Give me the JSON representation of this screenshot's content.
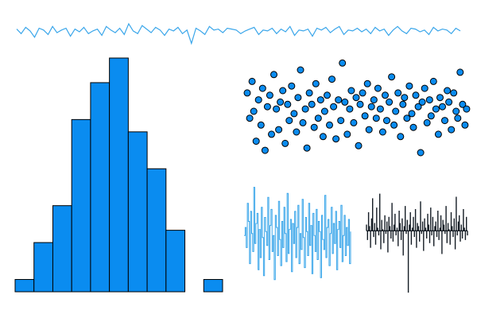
{
  "colors": {
    "blue": "#0a8cf0",
    "light_blue": "#3aa6ea",
    "dark": "#141c24",
    "outline": "#000000",
    "background": "#ffffff"
  },
  "chart_data": [
    {
      "type": "line",
      "description_free": true,
      "x": [
        0,
        1,
        2,
        3,
        4,
        5,
        6,
        7,
        8,
        9,
        10,
        11,
        12,
        13,
        14,
        15,
        16,
        17,
        18,
        19,
        20,
        21,
        22,
        23,
        24,
        25,
        26,
        27,
        28,
        29,
        30,
        31,
        32,
        33,
        34,
        35,
        36,
        37,
        38,
        39,
        40,
        41,
        42,
        43,
        44,
        45,
        46,
        47,
        48,
        49,
        50,
        51,
        52,
        53,
        54,
        55,
        56,
        57,
        58,
        59,
        60,
        61,
        62,
        63,
        64,
        65,
        66,
        67,
        68,
        69,
        70,
        71,
        72,
        73,
        74,
        75,
        76,
        77,
        78,
        79,
        80,
        81,
        82,
        83,
        84,
        85,
        86,
        87,
        88,
        89,
        90,
        91,
        92,
        93,
        94,
        95,
        96,
        97,
        98,
        99
      ],
      "y": [
        0.3,
        -0.2,
        0.5,
        0.1,
        -0.6,
        0.4,
        0.2,
        -0.3,
        0.6,
        -0.1,
        0.2,
        0.4,
        -0.5,
        0.3,
        0.0,
        0.5,
        -0.2,
        0.1,
        0.3,
        -0.4,
        0.6,
        0.2,
        -0.1,
        0.4,
        -0.3,
        0.9,
        0.1,
        -0.2,
        0.7,
        0.3,
        -0.1,
        0.5,
        0.2,
        -0.4,
        0.3,
        0.1,
        0.5,
        -0.2,
        0.2,
        -1.3,
        0.4,
        0.1,
        -0.3,
        0.6,
        0.2,
        0.3,
        -0.1,
        0.4,
        0.3,
        0.2,
        -0.2,
        0.1,
        0.3,
        0.5,
        -0.3,
        0.2,
        0.1,
        0.4,
        -0.2,
        0.3,
        0.0,
        0.6,
        -0.4,
        0.2,
        0.1,
        0.3,
        -0.5,
        0.4,
        0.2,
        0.5,
        -0.1,
        0.3,
        0.6,
        -0.3,
        0.2,
        0.1,
        0.4,
        0.0,
        0.3,
        -0.2,
        0.5,
        0.1,
        0.3,
        -0.4,
        0.2,
        0.6,
        0.1,
        -0.2,
        0.4,
        0.3,
        0.0,
        0.2,
        -0.3,
        0.5,
        0.1,
        0.3,
        0.2,
        -0.2,
        0.4,
        0.1
      ],
      "ylim": [
        -1.6,
        1.6
      ]
    },
    {
      "type": "bar",
      "bin_edges": [
        -3.0,
        -2.5,
        -2.0,
        -1.5,
        -1.0,
        -0.5,
        0.0,
        0.5,
        1.0,
        1.5,
        2.0,
        2.5
      ],
      "values": [
        1,
        4,
        7,
        14,
        17,
        19,
        13,
        10,
        5,
        0,
        1
      ],
      "ylim": [
        0,
        19
      ]
    },
    {
      "type": "scatter",
      "x": [
        0.3,
        0.6,
        0.9,
        1.1,
        1.4,
        1.7,
        2.0,
        2.2,
        2.5,
        2.8,
        3.1,
        3.3,
        3.6,
        3.9,
        4.2,
        4.4,
        4.7,
        5.0,
        5.3,
        5.5,
        5.8,
        6.1,
        6.4,
        6.6,
        6.9,
        7.2,
        7.5,
        7.7,
        8.0,
        8.3,
        8.6,
        8.8,
        9.1,
        9.4,
        9.7,
        9.9,
        10.2,
        10.5,
        10.8,
        11.0,
        11.3,
        11.6,
        11.9,
        12.1,
        12.4,
        12.7,
        13.0,
        13.2,
        13.5,
        13.8,
        14.1,
        14.3,
        14.6,
        14.9,
        15.2,
        15.4,
        15.7,
        16.0,
        16.3,
        16.5,
        16.8,
        17.1,
        17.4,
        17.6,
        17.9,
        18.2,
        18.5,
        18.7,
        19.0,
        19.3,
        19.6,
        19.8,
        20.1,
        20.4,
        20.7,
        20.9,
        21.2,
        21.5,
        21.8,
        22.0,
        22.3,
        22.6,
        22.9,
        23.1,
        23.4,
        23.7,
        24.0,
        24.2,
        24.5,
        24.8,
        25.1,
        25.3,
        25.6,
        25.9,
        26.2,
        26.4,
        26.7,
        27.0,
        27.3,
        27.5
      ],
      "y": [
        0.9,
        -0.2,
        1.4,
        0.1,
        -1.2,
        0.6,
        -0.5,
        1.1,
        -1.6,
        0.3,
        0.8,
        -0.9,
        1.7,
        0.2,
        -0.7,
        0.5,
        1.0,
        -1.3,
        0.4,
        -0.3,
        1.2,
        0.0,
        -0.8,
        0.7,
        1.9,
        -0.4,
        0.2,
        -1.5,
        0.9,
        0.4,
        -0.6,
        1.3,
        -0.2,
        0.6,
        -1.0,
        0.1,
        0.8,
        -0.5,
        1.5,
        0.3,
        -1.1,
        0.6,
        -0.3,
        2.2,
        0.5,
        -0.9,
        0.2,
        1.0,
        -0.4,
        0.7,
        -1.4,
        0.4,
        0.9,
        -0.1,
        1.3,
        -0.7,
        0.3,
        0.6,
        -0.2,
        1.1,
        0.2,
        -0.8,
        0.8,
        -0.3,
        0.5,
        1.6,
        -0.5,
        0.1,
        0.9,
        -1.0,
        0.4,
        0.7,
        -0.2,
        1.2,
        0.0,
        -0.6,
        0.8,
        0.3,
        -1.7,
        0.5,
        1.1,
        -0.4,
        0.6,
        -0.1,
        1.4,
        0.2,
        -0.9,
        0.7,
        0.3,
        -0.3,
        1.0,
        0.5,
        -0.7,
        0.9,
        0.1,
        -0.2,
        1.8,
        0.4,
        -0.5,
        0.2
      ],
      "xlim": [
        0,
        28
      ],
      "ylim": [
        -2.6,
        2.8
      ]
    },
    {
      "type": "line",
      "steps": true,
      "x": [
        0,
        1,
        2,
        3,
        4,
        5,
        6,
        7,
        8,
        9,
        10,
        11,
        12,
        13,
        14,
        15,
        16,
        17,
        18,
        19,
        20,
        21,
        22,
        23,
        24,
        25,
        26,
        27,
        28,
        29,
        30,
        31,
        32,
        33,
        34,
        35,
        36,
        37,
        38,
        39,
        40,
        41,
        42,
        43,
        44,
        45,
        46,
        47,
        48,
        49,
        50,
        51,
        52,
        53,
        54,
        55,
        56,
        57,
        58,
        59,
        60,
        61,
        62,
        63,
        64,
        65,
        66,
        67,
        68,
        69,
        70,
        71,
        72,
        73,
        74,
        75,
        76,
        77,
        78,
        79,
        80,
        81,
        82,
        83,
        84,
        85,
        86,
        87,
        88,
        89,
        90,
        91,
        92,
        93,
        94,
        95,
        96,
        97,
        98,
        99
      ],
      "y": [
        0.2,
        0.6,
        -0.4,
        1.8,
        0.9,
        -1.2,
        1.4,
        0.3,
        -0.6,
        2.6,
        -0.2,
        0.8,
        1.3,
        -1.5,
        0.5,
        -0.9,
        1.6,
        0.1,
        -1.8,
        1.1,
        0.4,
        -0.3,
        2.1,
        -1.0,
        0.7,
        1.5,
        -0.6,
        0.2,
        -2.0,
        1.2,
        0.6,
        -0.8,
        1.9,
        0.0,
        -1.3,
        0.9,
        -0.4,
        1.6,
        0.3,
        -1.1,
        2.3,
        -0.7,
        0.5,
        1.0,
        -1.6,
        0.8,
        -0.2,
        1.4,
        -0.9,
        0.6,
        1.7,
        -1.2,
        0.3,
        -0.5,
        2.0,
        0.1,
        -1.4,
        1.1,
        0.4,
        -0.8,
        1.8,
        -0.3,
        0.7,
        -1.7,
        1.3,
        0.2,
        -0.6,
        1.5,
        -1.0,
        0.9,
        0.4,
        -1.9,
        1.2,
        0.0,
        -0.5,
        2.2,
        -0.9,
        0.6,
        1.0,
        -1.3,
        0.3,
        1.6,
        -0.7,
        0.8,
        -0.2,
        1.4,
        -1.5,
        0.5,
        0.9,
        -0.4,
        1.7,
        -1.1,
        0.2,
        1.2,
        -0.8,
        0.6,
        -0.3,
        1.0,
        -1.2,
        0.4
      ],
      "ylim": [
        -2.8,
        2.9
      ]
    },
    {
      "type": "bar",
      "x": [
        0,
        1,
        2,
        3,
        4,
        5,
        6,
        7,
        8,
        9,
        10,
        11,
        12,
        13,
        14,
        15,
        16,
        17,
        18,
        19,
        20,
        21,
        22,
        23,
        24,
        25,
        26,
        27,
        28,
        29,
        30,
        31,
        32,
        33,
        34,
        35,
        36,
        37,
        38,
        39,
        40,
        41,
        42,
        43,
        44,
        45,
        46,
        47,
        48,
        49,
        50,
        51,
        52,
        53,
        54,
        55,
        56,
        57,
        58,
        59,
        60,
        61,
        62,
        63,
        64,
        65,
        66,
        67,
        68,
        69,
        70,
        71,
        72,
        73,
        74,
        75,
        76,
        77,
        78,
        79,
        80,
        81,
        82,
        83,
        84,
        85,
        86,
        87,
        88,
        89,
        90,
        91,
        92,
        93,
        94,
        95,
        96,
        97,
        98,
        99
      ],
      "values": [
        0.4,
        -0.6,
        1.2,
        0.3,
        -1.1,
        0.8,
        2.1,
        -0.4,
        0.5,
        -0.9,
        1.5,
        0.2,
        -0.3,
        2.4,
        -1.2,
        0.7,
        0.1,
        -0.8,
        1.0,
        -0.2,
        0.6,
        -1.4,
        0.9,
        0.3,
        -0.5,
        1.8,
        -0.7,
        0.4,
        1.1,
        -0.3,
        0.2,
        -1.0,
        1.3,
        0.5,
        -0.6,
        0.8,
        -1.6,
        0.3,
        1.6,
        -0.2,
        0.7,
        -4.0,
        0.4,
        1.2,
        -0.9,
        0.2,
        0.9,
        -0.4,
        1.4,
        -1.1,
        0.5,
        0.3,
        -0.7,
        1.9,
        -0.2,
        0.6,
        -1.3,
        0.8,
        0.2,
        -0.5,
        1.1,
        0.4,
        -0.8,
        1.5,
        -0.3,
        0.9,
        -1.0,
        0.3,
        0.6,
        -0.4,
        1.3,
        -0.6,
        0.2,
        1.0,
        -1.5,
        0.7,
        0.4,
        -0.2,
        1.6,
        -0.8,
        0.5,
        0.1,
        -0.9,
        1.2,
        0.3,
        -0.4,
        0.8,
        -1.2,
        2.2,
        -0.3,
        0.6,
        1.0,
        -0.7,
        0.4,
        -0.5,
        1.4,
        0.2,
        -0.6,
        0.9,
        -0.3
      ],
      "ylim": [
        -4.2,
        3.2
      ]
    }
  ]
}
